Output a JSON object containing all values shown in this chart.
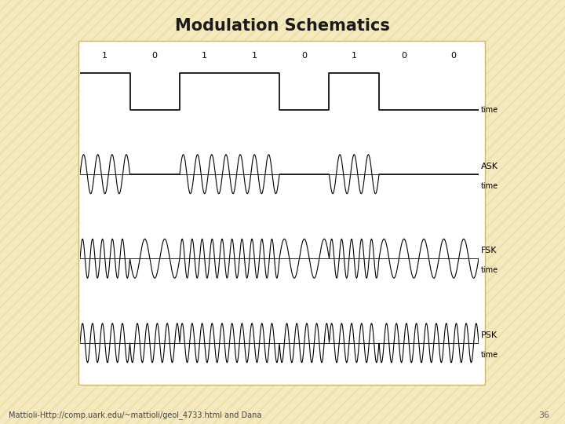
{
  "title": "Modulation Schematics",
  "background_color": "#f5e9c0",
  "panel_background": "#ffffff",
  "panel_border_color": "#ccb870",
  "bits": [
    1,
    0,
    1,
    1,
    0,
    1,
    0,
    0
  ],
  "footer_text": "Mattioli-Http://comp.uark.edu/~mattioli/geol_4733.html and Dana",
  "page_number": "36",
  "title_fontsize": 15,
  "bit_label_fontsize": 8,
  "signal_label_fontsize": 8,
  "time_label_fontsize": 7,
  "footer_fontsize": 7,
  "carrier_freq_ask": 3.5,
  "freq_0_fsk": 2.5,
  "freq_1_fsk": 5.0,
  "carrier_freq_psk": 5.0,
  "stripe_color": "#e8d89a",
  "stripe_alpha": 0.5
}
